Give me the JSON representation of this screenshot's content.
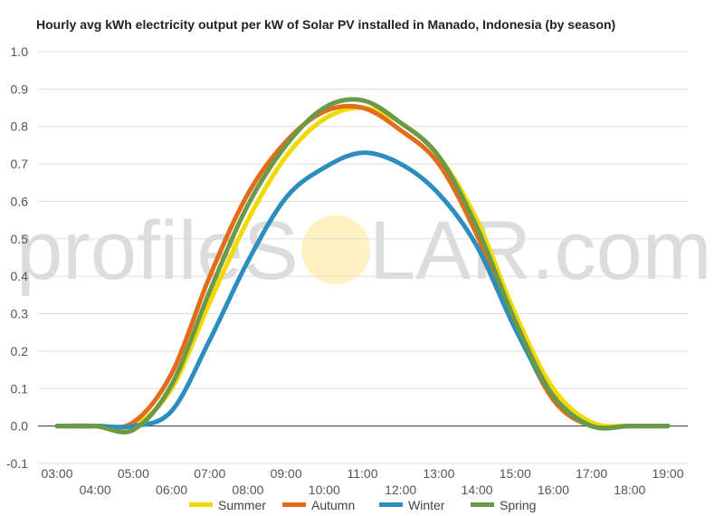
{
  "watermark": {
    "text_left": "profileS",
    "text_right": "LAR.com",
    "sun_color": "#fff2c0"
  },
  "chart_data": {
    "type": "line",
    "title": "Hourly avg kWh electricity output per kW of Solar PV installed in Manado, Indonesia (by season)",
    "xlabel": "",
    "ylabel": "",
    "x": [
      "03:00",
      "04:00",
      "05:00",
      "06:00",
      "07:00",
      "08:00",
      "09:00",
      "10:00",
      "11:00",
      "12:00",
      "13:00",
      "14:00",
      "15:00",
      "16:00",
      "17:00",
      "18:00",
      "19:00"
    ],
    "xlim": [
      3,
      19
    ],
    "ylim": [
      -0.1,
      1.0
    ],
    "yticks": [
      "1.0",
      "0.9",
      "0.8",
      "0.7",
      "0.6",
      "0.5",
      "0.4",
      "0.3",
      "0.2",
      "0.1",
      "0.0",
      "-0.1"
    ],
    "grid": true,
    "legend_position": "bottom",
    "series": [
      {
        "name": "Summer",
        "color": "#f2d900",
        "values": [
          0.0,
          0.0,
          0.0,
          0.1,
          0.33,
          0.55,
          0.72,
          0.82,
          0.85,
          0.81,
          0.72,
          0.55,
          0.3,
          0.1,
          0.01,
          0.0,
          0.0
        ]
      },
      {
        "name": "Autumn",
        "color": "#e36c1b",
        "values": [
          0.0,
          0.0,
          0.01,
          0.14,
          0.4,
          0.62,
          0.76,
          0.84,
          0.85,
          0.79,
          0.7,
          0.51,
          0.27,
          0.07,
          0.0,
          0.0,
          0.0
        ]
      },
      {
        "name": "Winter",
        "color": "#2b8ebf",
        "values": [
          0.0,
          0.0,
          0.0,
          0.04,
          0.23,
          0.44,
          0.61,
          0.69,
          0.73,
          0.7,
          0.62,
          0.48,
          0.26,
          0.08,
          0.0,
          0.0,
          0.0
        ]
      },
      {
        "name": "Spring",
        "color": "#6a9a47",
        "values": [
          0.0,
          0.0,
          -0.01,
          0.11,
          0.36,
          0.59,
          0.75,
          0.85,
          0.87,
          0.81,
          0.72,
          0.53,
          0.28,
          0.08,
          0.0,
          0.0,
          0.0
        ]
      }
    ]
  }
}
